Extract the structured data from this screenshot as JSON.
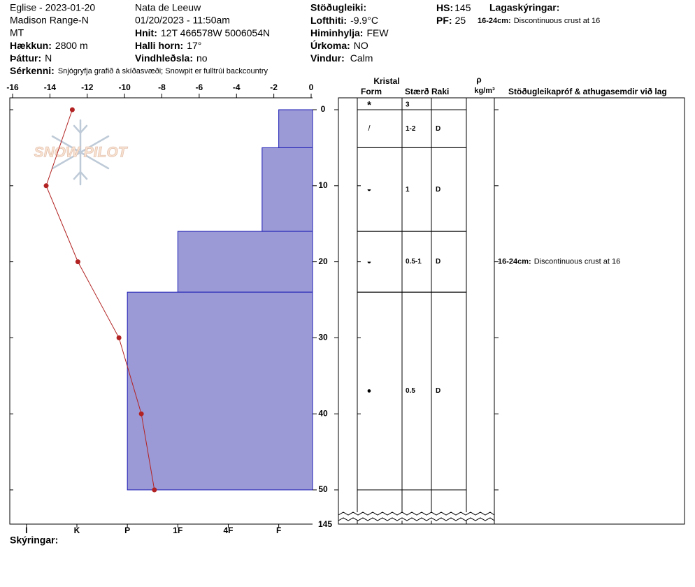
{
  "header": {
    "site": "Eglise - 2023-01-20",
    "range": "Madison Range-N",
    "state": "MT",
    "elevation_label": "Hækkun:",
    "elevation": "2800 m",
    "aspect_label": "Þáttur:",
    "aspect": "N",
    "features_label": "Sérkenni:",
    "features": "Snjógryfja grafið á skíðasvæði;  Snowpit er fulltrúi backcountry",
    "observer": "Nata de Leeuw",
    "datetime": "01/20/2023 - 11:50am",
    "coords_label": "Hnit:",
    "coords": "12T 466578W 5006054N",
    "slope_label": "Halli horn:",
    "slope": "17°",
    "wind_loading_label": "Vindhleðsla:",
    "wind_loading": "no",
    "stability_label": "Stöðugleiki:",
    "air_temp_label": "Lofthiti:",
    "air_temp": "-9.9°C",
    "sky_label": "Himinhylja:",
    "sky": "FEW",
    "precip_label": "Úrkoma:",
    "precip": "NO",
    "wind_label": "Vindur:",
    "wind": "Calm",
    "hs_label": "HS:",
    "hs": 145,
    "pf_label": "PF:",
    "pf": 25,
    "layer_notes_label": "Lagaskýringar:"
  },
  "logo": "SNOW PILOT",
  "notes_label": "Skýringar:",
  "table_header": {
    "crystal": "Kristal",
    "form": "Form",
    "size": "Stærð",
    "moisture": "Raki",
    "density": "ρ",
    "density_unit": "kg/m³",
    "tests": "Stöðugleikapróf & athugasemdir við lag"
  },
  "chart_data": {
    "type": "profile",
    "xlim": [
      -16,
      0
    ],
    "xticks": [
      -16,
      -14,
      -12,
      -10,
      -8,
      -6,
      -4,
      -2,
      0
    ],
    "ylim": [
      0,
      50
    ],
    "yticks": [
      0,
      10,
      20,
      30,
      40,
      50
    ],
    "hardness_lim": [
      0.33,
      6.33
    ],
    "hardness_ticks": [
      {
        "value": 6,
        "label": "I"
      },
      {
        "value": 5,
        "label": "K"
      },
      {
        "value": 4,
        "label": "P"
      },
      {
        "value": 3,
        "label": "1F"
      },
      {
        "value": 2,
        "label": "4F"
      },
      {
        "value": 1,
        "label": "F"
      }
    ],
    "bar_color": "#9c9ad6",
    "bar_edge": "#1a1ab4",
    "temperature": {
      "color": "#b22222",
      "depths": [
        0,
        10,
        20,
        30,
        40,
        50
      ],
      "values": [
        -12.8,
        -14.2,
        -12.5,
        -10.3,
        -9.1,
        -8.4
      ]
    },
    "surface": {
      "form": "*",
      "size": "3"
    },
    "layers": [
      {
        "top": 0,
        "bottom": 5,
        "hardness": 1,
        "form": "/",
        "size": "1-2",
        "moisture": "D"
      },
      {
        "top": 5,
        "bottom": 16,
        "hardness": 1.33,
        "form": "◒",
        "size": "1",
        "moisture": "D"
      },
      {
        "top": 16,
        "bottom": 24,
        "hardness": 3,
        "form": "◒",
        "size": "0.5-1",
        "moisture": "D",
        "comment_label": "16-24cm:",
        "comment": "Discontinuous crust at 16"
      },
      {
        "top": 24,
        "bottom": 50,
        "hardness": 4,
        "form": "●",
        "size": "0.5",
        "moisture": "D"
      }
    ]
  }
}
